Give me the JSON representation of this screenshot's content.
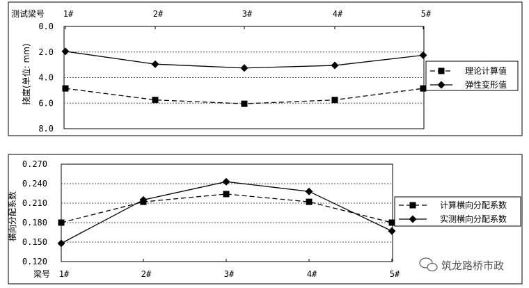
{
  "chart_data": [
    {
      "type": "line",
      "x_axis_title": "测试梁号",
      "categories": [
        "1#",
        "2#",
        "3#",
        "4#",
        "5#"
      ],
      "ylabel": "挠度(单位: mm)",
      "ylim": [
        0.0,
        8.0
      ],
      "y_ticks": [
        "0.0",
        "2.0",
        "4.0",
        "6.0",
        "8.0"
      ],
      "y_inverted": true,
      "x_axis_position": "top",
      "grid": "horizontal-dotted",
      "legend_position": "right",
      "series": [
        {
          "name": "理论计算值",
          "values": [
            4.85,
            5.75,
            6.05,
            5.75,
            4.85
          ],
          "line": "dashed",
          "marker": "square"
        },
        {
          "name": "弹性变形值",
          "values": [
            1.95,
            2.95,
            3.25,
            3.05,
            2.25
          ],
          "line": "solid",
          "marker": "diamond"
        }
      ]
    },
    {
      "type": "line",
      "x_axis_title": "梁号",
      "categories": [
        "1#",
        "2#",
        "3#",
        "4#",
        "5#"
      ],
      "ylabel": "横向分配系数",
      "ylim": [
        0.12,
        0.27
      ],
      "y_ticks": [
        "0.270",
        "0.240",
        "0.210",
        "0.180",
        "0.150",
        "0.120"
      ],
      "grid": "horizontal-dotted",
      "legend_position": "right",
      "series": [
        {
          "name": "计算横向分配系数",
          "values": [
            0.18,
            0.212,
            0.224,
            0.212,
            0.18
          ],
          "line": "dashed",
          "marker": "square"
        },
        {
          "name": "实测横向分配系数",
          "values": [
            0.148,
            0.215,
            0.243,
            0.228,
            0.167
          ],
          "line": "solid",
          "marker": "diamond"
        }
      ]
    }
  ],
  "watermark": {
    "text": "筑龙路桥市政",
    "icon": "wechat-icon"
  }
}
